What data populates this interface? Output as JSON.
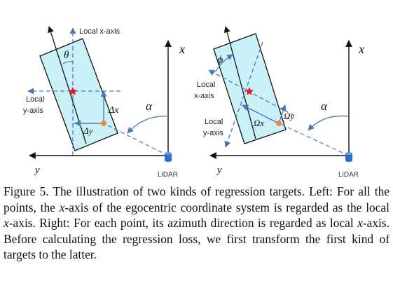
{
  "left_panel": {
    "label_local_x": "Local x-axis",
    "label_local_y_line1": "Local",
    "label_local_y_line2": "y-axis",
    "label_x": "x",
    "label_y": "y",
    "label_alpha": "α",
    "label_theta": "θ",
    "label_dx": "Δx",
    "label_dy": "Δy",
    "label_lidar": "LiDAR"
  },
  "right_panel": {
    "label_local_x_line1": "Local",
    "label_local_x_line2": "x-axis",
    "label_local_y_line1": "Local",
    "label_local_y_line2": "y-axis",
    "label_x": "x",
    "label_y": "y",
    "label_alpha": "α",
    "label_phi": "ϕ",
    "label_omega_x": "Ωx",
    "label_omega_y": "Ωy",
    "label_lidar": "LiDAR"
  },
  "caption": {
    "p1": "Figure 5. The illustration of two kinds of regression targets. Left: For all the points, the ",
    "m1": "x",
    "p2": "-axis of the egocentric coordinate system is regarded as the local ",
    "m2": "x",
    "p3": "-axis. Right: For each point, its azimuth direction is regarded as local ",
    "m3": "x",
    "p4": "-axis. Before calculating the regression loss, we first transform the first kind of targets to the latter."
  },
  "colors": {
    "box_fill": "#c9f1f7",
    "line_blue": "#4a78b3",
    "star": "#e8141e",
    "point": "#f0883a",
    "lidar": "#2d6ec9"
  }
}
